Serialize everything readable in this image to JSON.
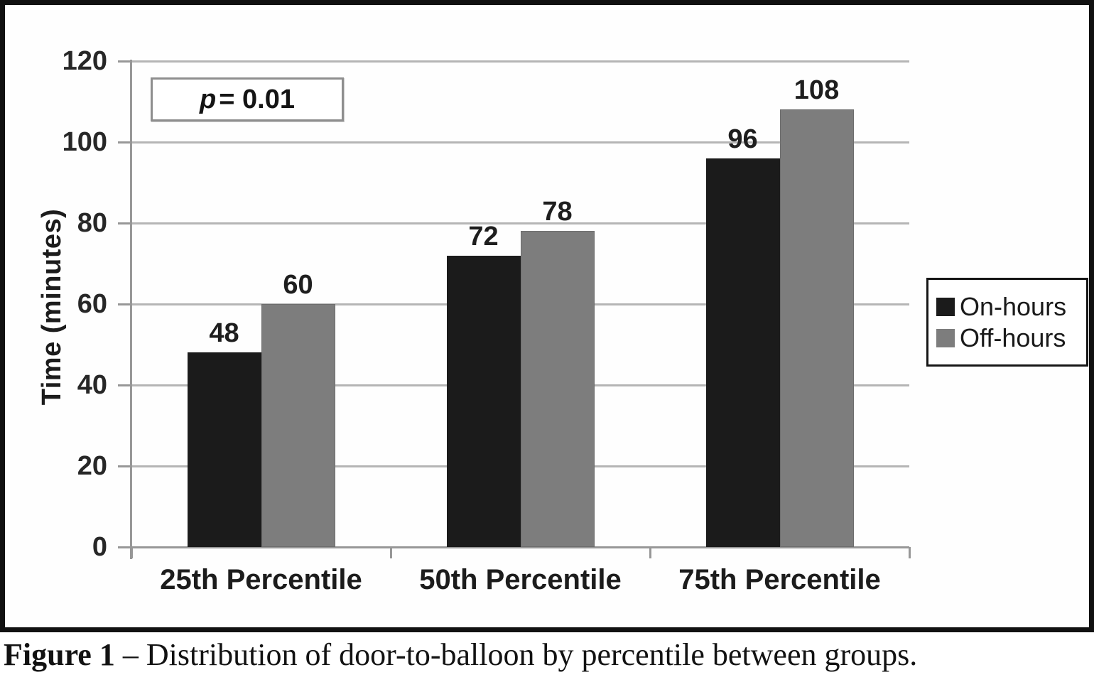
{
  "figure_caption": {
    "prefix": "Figure 1",
    "rest": " – Distribution of door-to-balloon by percentile between groups."
  },
  "annotation": {
    "italic_part": "p",
    "rest_part": " = 0.01"
  },
  "chart_data": {
    "type": "bar",
    "title": "",
    "xlabel": "",
    "ylabel": "Time (minutes)",
    "categories": [
      "25th Percentile",
      "50th Percentile",
      "75th Percentile"
    ],
    "series": [
      {
        "name": "On-hours",
        "color": "#1b1b1b",
        "values": [
          48,
          72,
          96
        ]
      },
      {
        "name": "Off-hours",
        "color": "#7d7d7d",
        "values": [
          60,
          78,
          108
        ]
      }
    ],
    "ylim": [
      0,
      120
    ],
    "yticks": [
      0,
      20,
      40,
      60,
      80,
      100,
      120
    ],
    "grid": true,
    "bar_value_labels": [
      [
        48,
        72,
        96
      ],
      [
        60,
        78,
        108
      ]
    ],
    "legend_position": "right",
    "annotation_text": "p = 0.01"
  },
  "style_colors": {
    "on_hours_bar": "#1b1b1b",
    "off_hours_bar": "#7d7d7d",
    "gridline": "#b5b5b5",
    "axis": "#979797",
    "figure_border": "#111111"
  }
}
